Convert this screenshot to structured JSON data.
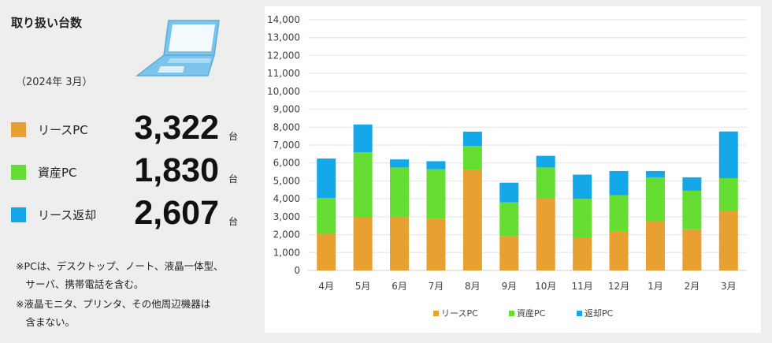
{
  "panel": {
    "title": "取り扱い台数",
    "as_of": "（2024年 3月）",
    "stats": [
      {
        "label": "リースPC",
        "value": "3,322",
        "unit": "台",
        "color": "#e8a030"
      },
      {
        "label": "資産PC",
        "value": "1,830",
        "unit": "台",
        "color": "#66dd33"
      },
      {
        "label": "リース返却",
        "value": "2,607",
        "unit": "台",
        "color": "#15a8e8"
      }
    ],
    "notes": [
      "※PCは、デスクトップ、ノート、液晶一体型、",
      "　サーバ、携帯電話を含む。",
      "※液晶モニタ、プリンタ、その他周辺機器は",
      "　含まない。"
    ]
  },
  "chart_data": {
    "type": "bar",
    "stacked": true,
    "categories": [
      "4月",
      "5月",
      "6月",
      "7月",
      "8月",
      "9月",
      "10月",
      "11月",
      "12月",
      "1月",
      "2月",
      "3月"
    ],
    "series": [
      {
        "name": "リースPC",
        "color": "#e8a030",
        "values": [
          2050,
          2950,
          3000,
          2900,
          5600,
          1900,
          4050,
          1850,
          2200,
          2750,
          2300,
          3322
        ]
      },
      {
        "name": "資産PC",
        "color": "#66dd33",
        "values": [
          2000,
          3650,
          2750,
          2750,
          1350,
          1900,
          1700,
          2150,
          2000,
          2450,
          2150,
          1830
        ]
      },
      {
        "name": "返却PC",
        "color": "#15a8e8",
        "values": [
          2200,
          1550,
          450,
          450,
          800,
          1100,
          650,
          1350,
          1350,
          350,
          750,
          2607
        ]
      }
    ],
    "ylim": [
      0,
      14000
    ],
    "ytick_step": 1000,
    "ytick_labels": [
      "0",
      "1,000",
      "2,000",
      "3,000",
      "4,000",
      "5,000",
      "6,000",
      "7,000",
      "8,000",
      "9,000",
      "10,000",
      "11,000",
      "12,000",
      "13,000",
      "14,000"
    ],
    "legend_labels": [
      "リースPC",
      "資産PC",
      "返却PC"
    ],
    "legend_position": "bottom",
    "grid": true
  }
}
